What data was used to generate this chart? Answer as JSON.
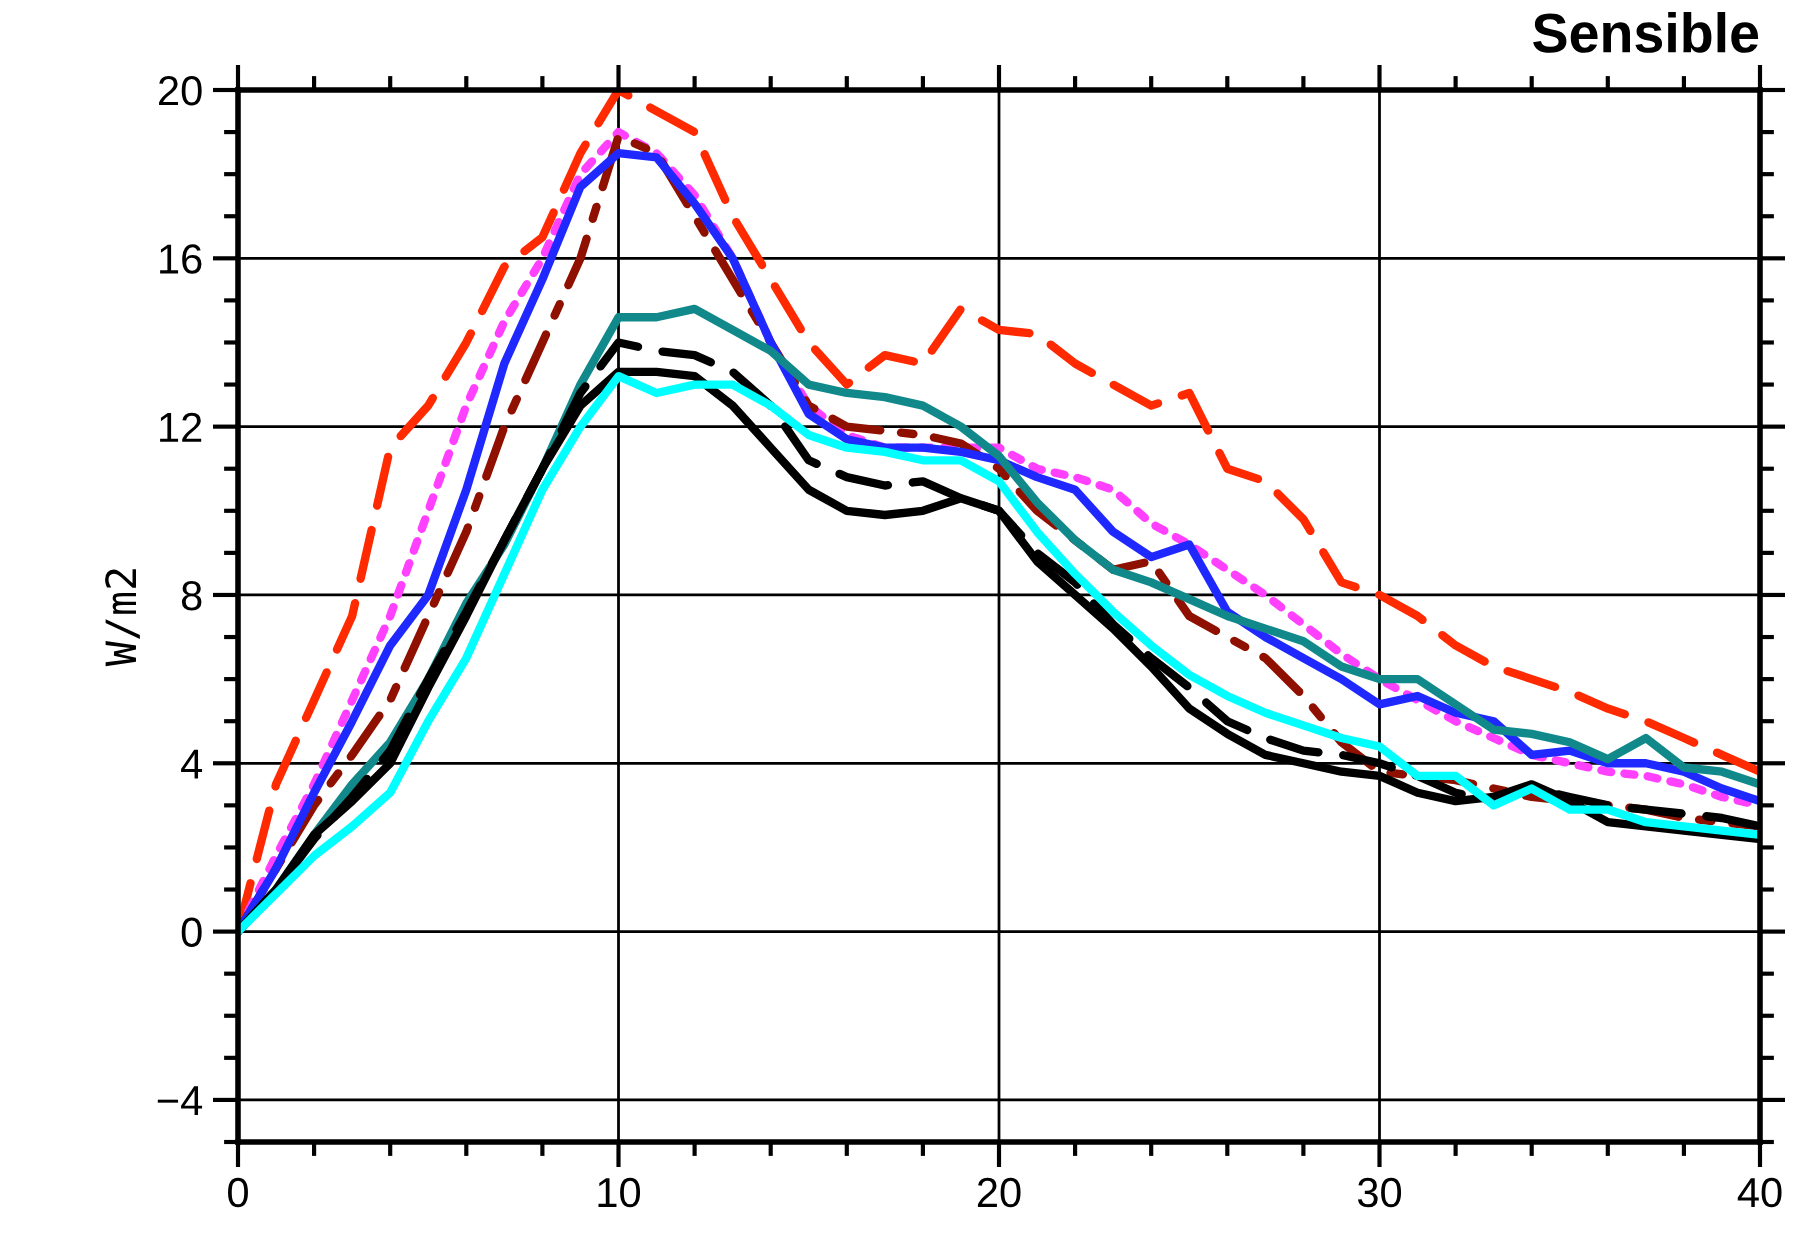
{
  "chart_data": {
    "type": "line",
    "title": "Sensible",
    "ylabel": "W/m2",
    "x": [
      0,
      1,
      2,
      3,
      4,
      5,
      6,
      7,
      8,
      9,
      10,
      11,
      12,
      13,
      14,
      15,
      16,
      17,
      18,
      19,
      20,
      21,
      22,
      23,
      24,
      25,
      26,
      27,
      28,
      29,
      30,
      31,
      32,
      33,
      34,
      35,
      36,
      37,
      38,
      39,
      40
    ],
    "xlim": [
      0,
      40
    ],
    "xticks": [
      0,
      10,
      20,
      30,
      40
    ],
    "ylim": [
      -5,
      20
    ],
    "yticks": [
      -4,
      0,
      4,
      8,
      12,
      16,
      20
    ],
    "grid": true,
    "marker": "none",
    "series": [
      {
        "color": "#ff2a00",
        "line_style": "dashed",
        "values": [
          0,
          3.5,
          5.5,
          7.5,
          11.5,
          12.5,
          14,
          15.8,
          16.5,
          18.5,
          20,
          19.5,
          19,
          17,
          15.5,
          14,
          13,
          13.7,
          13.5,
          14.8,
          14.3,
          14.2,
          13.5,
          13,
          12.5,
          12.8,
          11,
          10.7,
          9.8,
          8.3,
          8,
          7.5,
          6.8,
          6.3,
          6,
          5.7,
          5.3,
          5,
          4.6,
          4.2,
          3.8
        ]
      },
      {
        "color": "#ff40ff",
        "line_style": "dotted",
        "values": [
          0,
          1.8,
          3.5,
          5.5,
          7.5,
          10,
          12.5,
          14.5,
          16,
          18,
          19,
          18.5,
          17.5,
          16,
          14,
          12.5,
          11.8,
          11.5,
          11.5,
          11.5,
          11.5,
          11,
          10.8,
          10.5,
          9.7,
          9.2,
          8.6,
          8,
          7.3,
          6.6,
          6,
          5.5,
          5,
          4.6,
          4.2,
          4,
          3.8,
          3.7,
          3.5,
          3.2,
          3.0
        ]
      },
      {
        "color": "#901000",
        "line_style": "dashdot",
        "values": [
          0,
          1.5,
          3,
          4.2,
          5.5,
          7.5,
          9.5,
          12,
          14,
          16,
          18.9,
          18.5,
          17,
          15.5,
          14,
          12.5,
          12,
          11.9,
          11.8,
          11.6,
          11,
          10,
          9.3,
          8.6,
          8.8,
          7.5,
          7,
          6.5,
          5.6,
          4.5,
          3.8,
          3.7,
          3.6,
          3.4,
          3.2,
          3.1,
          3,
          2.9,
          2.7,
          2.6,
          2.5
        ]
      },
      {
        "color": "#1e28ff",
        "line_style": "solid",
        "values": [
          0,
          1.5,
          3.3,
          5,
          6.8,
          8,
          10.5,
          13.5,
          15.5,
          17.7,
          18.5,
          18.4,
          17.3,
          16,
          14,
          12.3,
          11.7,
          11.5,
          11.5,
          11.4,
          11.2,
          10.8,
          10.5,
          9.5,
          8.9,
          9.2,
          7.6,
          7,
          6.5,
          6,
          5.4,
          5.6,
          5.2,
          5,
          4.2,
          4.3,
          4,
          4,
          3.8,
          3.4,
          3.1
        ]
      },
      {
        "color": "#11898a",
        "line_style": "solid",
        "values": [
          0,
          1,
          2.3,
          3.5,
          4.5,
          6,
          7.8,
          9.2,
          11,
          13,
          14.6,
          14.6,
          14.8,
          14.3,
          13.8,
          13,
          12.8,
          12.7,
          12.5,
          12,
          11.3,
          10.2,
          9.3,
          8.6,
          8.3,
          7.9,
          7.5,
          7.2,
          6.9,
          6.3,
          6,
          6,
          5.4,
          4.8,
          4.7,
          4.5,
          4.1,
          4.6,
          3.9,
          3.8,
          3.5
        ]
      },
      {
        "color": "#000000",
        "line_style": "dashed",
        "values": [
          0,
          1,
          2.2,
          3.2,
          4.3,
          6,
          7.6,
          9.3,
          11,
          12.8,
          14,
          13.8,
          13.7,
          13.3,
          12.5,
          11.2,
          10.8,
          10.6,
          10.7,
          10.3,
          10,
          9,
          8.3,
          7.3,
          6.5,
          5.8,
          5,
          4.6,
          4.3,
          4.2,
          4,
          3.7,
          3.3,
          3.1,
          3.4,
          3.2,
          3,
          2.9,
          2.8,
          2.7,
          2.5
        ]
      },
      {
        "color": "#000000",
        "line_style": "solid",
        "values": [
          0,
          1,
          2.3,
          3.1,
          4,
          5.8,
          7.5,
          9.3,
          11,
          12.5,
          13.3,
          13.3,
          13.2,
          12.5,
          11.5,
          10.5,
          10,
          9.9,
          10,
          10.3,
          10,
          8.8,
          8,
          7.2,
          6.3,
          5.3,
          4.7,
          4.2,
          4,
          3.8,
          3.7,
          3.3,
          3.1,
          3.2,
          3.5,
          3.1,
          2.6,
          2.5,
          2.4,
          2.3,
          2.2
        ]
      },
      {
        "color": "#00ffff",
        "line_style": "solid",
        "values": [
          0,
          0.9,
          1.8,
          2.5,
          3.3,
          5,
          6.5,
          8.5,
          10.5,
          12,
          13.2,
          12.8,
          13,
          13,
          12.5,
          11.8,
          11.5,
          11.4,
          11.2,
          11.2,
          10.7,
          9.5,
          8.5,
          7.6,
          6.8,
          6.1,
          5.6,
          5.2,
          4.9,
          4.6,
          4.4,
          3.7,
          3.7,
          3,
          3.4,
          2.9,
          2.9,
          2.6,
          2.5,
          2.4,
          2.3
        ]
      }
    ]
  }
}
